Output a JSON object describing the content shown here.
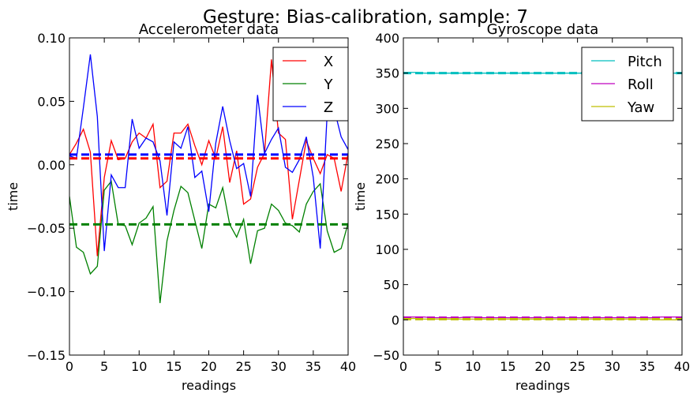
{
  "figure": {
    "title": "Gesture: Bias-calibration, sample: 7"
  },
  "chart_data": [
    {
      "type": "line",
      "title": "Accelerometer data",
      "xlabel": "readings",
      "ylabel": "time",
      "xlim": [
        0,
        40
      ],
      "ylim": [
        -0.15,
        0.1
      ],
      "xticks": [
        "0",
        "5",
        "10",
        "15",
        "20",
        "25",
        "30",
        "35",
        "40"
      ],
      "yticks": [
        "−0.15",
        "−0.10",
        "−0.05",
        "0.00",
        "0.05",
        "0.10"
      ],
      "grid": false,
      "legend_position": "top-right",
      "x": [
        0,
        1,
        2,
        3,
        4,
        5,
        6,
        7,
        8,
        9,
        10,
        11,
        12,
        13,
        14,
        15,
        16,
        17,
        18,
        19,
        20,
        21,
        22,
        23,
        24,
        25,
        26,
        27,
        28,
        29,
        30,
        31,
        32,
        33,
        34,
        35,
        36,
        37,
        38,
        39,
        40
      ],
      "series": [
        {
          "name": "X",
          "color": "#ff0000",
          "values": [
            0.008,
            0.017,
            0.028,
            0.01,
            -0.072,
            -0.01,
            0.019,
            0.004,
            0.005,
            0.018,
            0.025,
            0.021,
            0.032,
            -0.018,
            -0.013,
            0.025,
            0.025,
            0.032,
            0.015,
            0.0,
            0.019,
            0.005,
            0.03,
            -0.014,
            0.011,
            -0.031,
            -0.027,
            -0.002,
            0.009,
            0.083,
            0.025,
            0.02,
            -0.043,
            -0.012,
            0.019,
            0.005,
            -0.007,
            0.008,
            0.005,
            -0.021,
            0.009
          ]
        },
        {
          "name": "Y",
          "color": "#008000",
          "values": [
            -0.025,
            -0.065,
            -0.069,
            -0.086,
            -0.08,
            -0.02,
            -0.013,
            -0.047,
            -0.048,
            -0.063,
            -0.046,
            -0.042,
            -0.033,
            -0.109,
            -0.06,
            -0.036,
            -0.017,
            -0.022,
            -0.044,
            -0.066,
            -0.031,
            -0.034,
            -0.018,
            -0.047,
            -0.057,
            -0.043,
            -0.078,
            -0.052,
            -0.05,
            -0.031,
            -0.036,
            -0.046,
            -0.048,
            -0.053,
            -0.031,
            -0.021,
            -0.015,
            -0.052,
            -0.069,
            -0.066,
            -0.046
          ]
        },
        {
          "name": "Z",
          "color": "#0000ff",
          "values": [
            0.007,
            0.005,
            0.045,
            0.087,
            0.038,
            -0.068,
            -0.008,
            -0.018,
            -0.018,
            0.036,
            0.013,
            0.021,
            0.018,
            0.003,
            -0.04,
            0.018,
            0.013,
            0.03,
            -0.01,
            -0.005,
            -0.037,
            0.017,
            0.046,
            0.019,
            -0.003,
            0.001,
            -0.025,
            0.055,
            0.009,
            0.02,
            0.029,
            -0.002,
            -0.006,
            0.004,
            0.022,
            -0.01,
            -0.066,
            0.041,
            0.044,
            0.022,
            0.012
          ]
        }
      ],
      "mean_lines": [
        {
          "series": "X",
          "value": 0.005,
          "color": "#ff0000",
          "style": "dashed"
        },
        {
          "series": "Y",
          "value": -0.047,
          "color": "#008000",
          "style": "dashed"
        },
        {
          "series": "Z",
          "value": 0.008,
          "color": "#0000ff",
          "style": "dashed"
        }
      ]
    },
    {
      "type": "line",
      "title": "Gyroscope data",
      "xlabel": "readings",
      "ylabel": "time",
      "xlim": [
        0,
        40
      ],
      "ylim": [
        -50,
        400
      ],
      "xticks": [
        "0",
        "5",
        "10",
        "15",
        "20",
        "25",
        "30",
        "35",
        "40"
      ],
      "yticks": [
        "−50",
        "0",
        "50",
        "100",
        "150",
        "200",
        "250",
        "300",
        "350",
        "400"
      ],
      "grid": false,
      "legend_position": "top-right",
      "x": [
        0,
        1,
        2,
        3,
        4,
        5,
        6,
        7,
        8,
        9,
        10,
        11,
        12,
        13,
        14,
        15,
        16,
        17,
        18,
        19,
        20,
        21,
        22,
        23,
        24,
        25,
        26,
        27,
        28,
        29,
        30,
        31,
        32,
        33,
        34,
        35,
        36,
        37,
        38,
        39,
        40
      ],
      "series": [
        {
          "name": "Pitch",
          "color": "#00bfbf",
          "values": [
            351,
            351,
            351,
            350,
            350,
            350,
            350,
            350,
            350,
            350,
            350,
            350,
            350,
            350,
            350,
            350,
            350,
            350,
            350,
            350,
            350,
            350,
            350,
            350,
            350,
            350,
            350,
            350,
            350,
            350,
            350,
            350,
            350,
            350,
            350,
            350,
            350,
            350,
            350,
            350,
            350
          ]
        },
        {
          "name": "Roll",
          "color": "#bf00bf",
          "values": [
            4,
            4,
            4,
            4,
            3,
            3,
            3,
            3,
            3,
            4,
            4,
            3,
            3,
            3,
            3,
            3,
            3,
            3,
            3,
            3,
            3,
            3,
            3,
            3,
            3,
            3,
            3,
            3,
            3,
            3,
            3,
            3,
            3,
            3,
            3,
            3,
            3,
            4,
            4,
            4,
            4
          ]
        },
        {
          "name": "Yaw",
          "color": "#bfbf00",
          "values": [
            2,
            2,
            2,
            1,
            1,
            1,
            1,
            1,
            1,
            1,
            1,
            1,
            1,
            1,
            1,
            1,
            1,
            1,
            1,
            1,
            1,
            1,
            1,
            1,
            1,
            1,
            1,
            1,
            1,
            1,
            1,
            1,
            1,
            1,
            1,
            1,
            1,
            0,
            0,
            0,
            0
          ]
        }
      ],
      "mean_lines": [
        {
          "series": "Pitch",
          "value": 350,
          "color": "#00bfbf",
          "style": "dashed"
        },
        {
          "series": "Roll",
          "value": 3,
          "color": "#bf00bf",
          "style": "dashed"
        },
        {
          "series": "Yaw",
          "value": 1,
          "color": "#bfbf00",
          "style": "dashed"
        }
      ]
    }
  ]
}
